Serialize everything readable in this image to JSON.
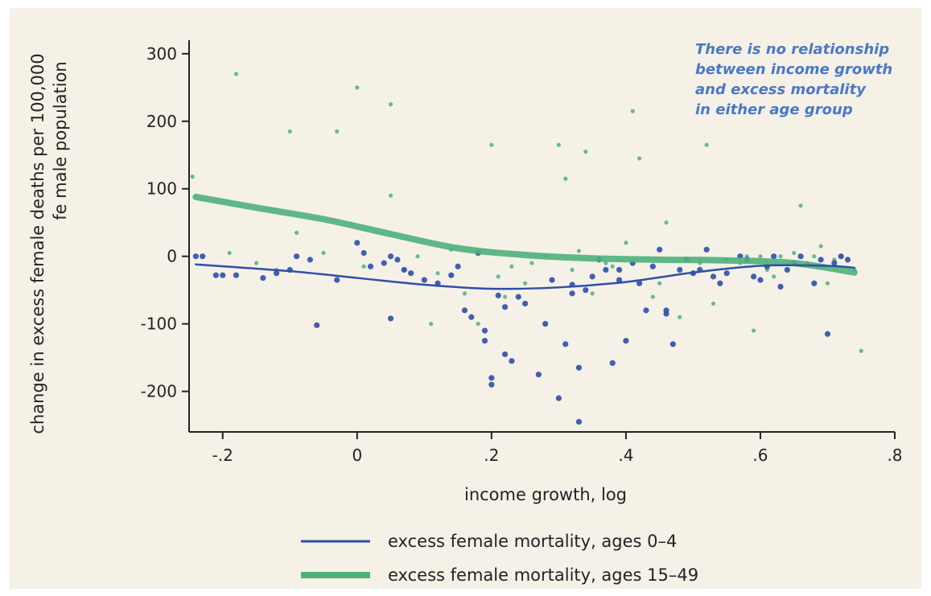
{
  "chart_data": {
    "type": "scatter",
    "xlabel": "income growth, log",
    "ylabel_lines": [
      "change in excess female deaths per 100,000",
      "fe male population"
    ],
    "xlim": [
      -0.25,
      0.8
    ],
    "ylim": [
      -260,
      320
    ],
    "x_ticks": [
      -0.2,
      0,
      0.2,
      0.4,
      0.6,
      0.8
    ],
    "x_tick_labels": [
      "-.2",
      "0",
      ".2",
      ".4",
      ".6",
      ".8"
    ],
    "y_ticks": [
      -200,
      -100,
      0,
      100,
      200,
      300
    ],
    "y_tick_labels": [
      "-200",
      "-100",
      "0",
      "100",
      "200",
      "300"
    ],
    "annotation_lines": [
      "There is no relationship",
      "between income growth",
      "and excess mortality",
      "in either age group"
    ],
    "series": [
      {
        "name": "excess female mortality, ages 0–4",
        "color": "#2f4fa8",
        "fit": {
          "x": [
            -0.24,
            -0.1,
            0.0,
            0.1,
            0.2,
            0.3,
            0.4,
            0.5,
            0.6,
            0.7,
            0.74
          ],
          "y": [
            -12,
            -22,
            -32,
            -42,
            -48,
            -46,
            -38,
            -24,
            -14,
            -14,
            -17
          ]
        },
        "points": {
          "x": [
            -0.24,
            -0.23,
            -0.21,
            -0.2,
            -0.18,
            -0.14,
            -0.12,
            -0.1,
            -0.09,
            -0.07,
            -0.06,
            -0.03,
            0.0,
            0.01,
            0.02,
            0.04,
            0.05,
            0.05,
            0.06,
            0.07,
            0.08,
            0.1,
            0.12,
            0.14,
            0.15,
            0.16,
            0.17,
            0.18,
            0.19,
            0.19,
            0.2,
            0.2,
            0.21,
            0.22,
            0.22,
            0.23,
            0.24,
            0.25,
            0.27,
            0.28,
            0.29,
            0.3,
            0.31,
            0.32,
            0.32,
            0.33,
            0.33,
            0.34,
            0.35,
            0.36,
            0.37,
            0.38,
            0.39,
            0.39,
            0.4,
            0.41,
            0.42,
            0.43,
            0.44,
            0.45,
            0.46,
            0.46,
            0.47,
            0.48,
            0.49,
            0.5,
            0.51,
            0.52,
            0.53,
            0.54,
            0.55,
            0.57,
            0.58,
            0.59,
            0.6,
            0.61,
            0.62,
            0.63,
            0.64,
            0.65,
            0.66,
            0.68,
            0.69,
            0.7,
            0.71,
            0.72,
            0.73
          ],
          "y": [
            0,
            0,
            -28,
            -28,
            -28,
            -32,
            -25,
            -20,
            0,
            -5,
            -102,
            -35,
            20,
            5,
            -15,
            -10,
            -92,
            0,
            -5,
            -20,
            -25,
            -35,
            -40,
            -28,
            -15,
            -80,
            -90,
            5,
            -110,
            -125,
            -180,
            -190,
            -58,
            -75,
            -145,
            -155,
            -60,
            -70,
            -175,
            -100,
            -35,
            -210,
            -130,
            -42,
            -55,
            -165,
            -245,
            -50,
            -30,
            -5,
            -20,
            -158,
            -20,
            -35,
            -125,
            -10,
            -40,
            -80,
            -15,
            10,
            -80,
            -85,
            -130,
            -20,
            -5,
            -25,
            -20,
            10,
            -30,
            -40,
            -25,
            0,
            -5,
            -30,
            -35,
            -15,
            0,
            -45,
            -20,
            -10,
            0,
            -40,
            -5,
            -115,
            -10,
            0,
            -5
          ]
        }
      },
      {
        "name": "excess female mortality, ages 15–49",
        "color": "#4fb07c",
        "fit": {
          "x": [
            -0.24,
            -0.15,
            -0.05,
            0.05,
            0.15,
            0.25,
            0.35,
            0.45,
            0.55,
            0.65,
            0.74
          ],
          "y": [
            88,
            72,
            55,
            33,
            12,
            2,
            -3,
            -5,
            -6,
            -10,
            -24
          ]
        },
        "points": {
          "x": [
            -0.245,
            -0.19,
            -0.18,
            -0.15,
            -0.12,
            -0.1,
            -0.09,
            -0.05,
            -0.03,
            0.0,
            0.01,
            0.05,
            0.05,
            0.07,
            0.09,
            0.11,
            0.12,
            0.14,
            0.16,
            0.18,
            0.2,
            0.21,
            0.22,
            0.23,
            0.25,
            0.26,
            0.28,
            0.3,
            0.31,
            0.32,
            0.33,
            0.34,
            0.35,
            0.37,
            0.38,
            0.4,
            0.41,
            0.42,
            0.44,
            0.45,
            0.46,
            0.48,
            0.5,
            0.51,
            0.52,
            0.53,
            0.55,
            0.57,
            0.58,
            0.59,
            0.6,
            0.61,
            0.62,
            0.63,
            0.65,
            0.66,
            0.67,
            0.68,
            0.69,
            0.7,
            0.71,
            0.72,
            0.74,
            0.75
          ],
          "y": [
            118,
            5,
            270,
            -10,
            -20,
            185,
            35,
            5,
            185,
            250,
            -15,
            225,
            90,
            -20,
            0,
            -100,
            -25,
            10,
            -55,
            -100,
            165,
            -30,
            -60,
            -15,
            -40,
            -10,
            0,
            165,
            115,
            -20,
            8,
            155,
            -55,
            -10,
            -15,
            20,
            215,
            145,
            -60,
            -40,
            50,
            -90,
            -25,
            -10,
            165,
            -70,
            -5,
            -10,
            0,
            -110,
            0,
            -20,
            -30,
            0,
            5,
            75,
            -10,
            0,
            15,
            -40,
            -5,
            0,
            -20,
            -140
          ]
        }
      }
    ]
  }
}
